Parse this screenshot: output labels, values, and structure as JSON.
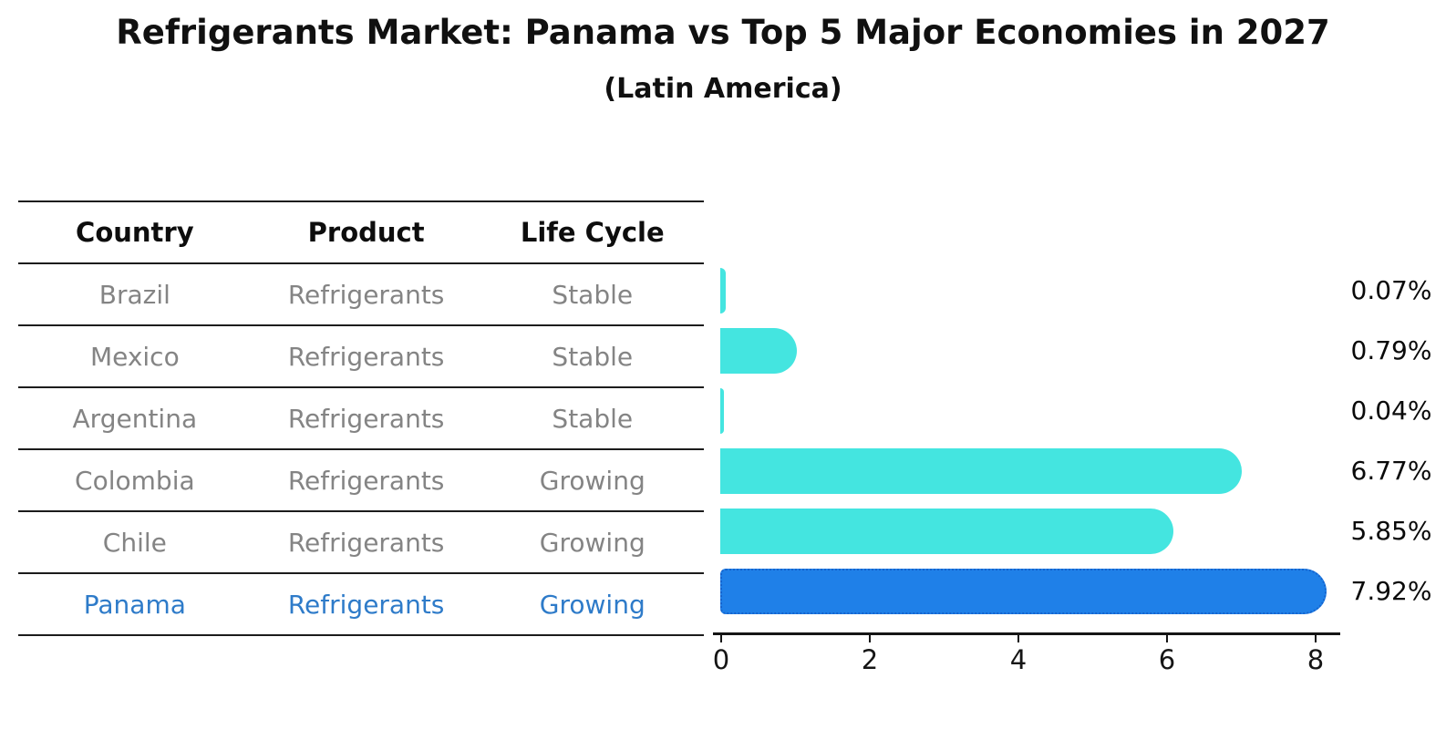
{
  "title": "Refrigerants Market: Panama vs Top 5 Major Economies in 2027",
  "subtitle": "(Latin America)",
  "table": {
    "headers": [
      "Country",
      "Product",
      "Life Cycle"
    ],
    "rows": [
      {
        "country": "Brazil",
        "product": "Refrigerants",
        "life_cycle": "Stable",
        "highlight": false
      },
      {
        "country": "Mexico",
        "product": "Refrigerants",
        "life_cycle": "Stable",
        "highlight": false
      },
      {
        "country": "Argentina",
        "product": "Refrigerants",
        "life_cycle": "Stable",
        "highlight": false
      },
      {
        "country": "Colombia",
        "product": "Refrigerants",
        "life_cycle": "Growing",
        "highlight": false
      },
      {
        "country": "Chile",
        "product": "Refrigerants",
        "life_cycle": "Growing",
        "highlight": false
      },
      {
        "country": "Panama",
        "product": "Refrigerants",
        "life_cycle": "Growing",
        "highlight": true
      }
    ]
  },
  "chart_data": {
    "type": "bar",
    "orientation": "horizontal",
    "title": "Refrigerants Market: Panama vs Top 5 Major Economies in 2027",
    "subtitle": "(Latin America)",
    "categories": [
      "Brazil",
      "Mexico",
      "Argentina",
      "Colombia",
      "Chile",
      "Panama"
    ],
    "values": [
      0.07,
      0.79,
      0.04,
      6.77,
      5.85,
      7.92
    ],
    "value_labels": [
      "0.07%",
      "0.79%",
      "0.04%",
      "6.77%",
      "5.85%",
      "7.92%"
    ],
    "x_ticks": [
      "0",
      "2",
      "4",
      "6",
      "8"
    ],
    "x_tick_values": [
      0,
      2,
      4,
      6,
      8
    ],
    "xlim": [
      0,
      8.3
    ],
    "grid": false,
    "legend": "none",
    "highlight_index": 5,
    "bar_color": "#44e5e0",
    "highlight_bar_color": "#1f80e8",
    "highlight_border_color": "#1563cd",
    "highlight_text_color": "#2e7bc9",
    "table_text_color": "#848484",
    "axis_color": "#151515",
    "value_label_color": "#0a0a0a"
  }
}
